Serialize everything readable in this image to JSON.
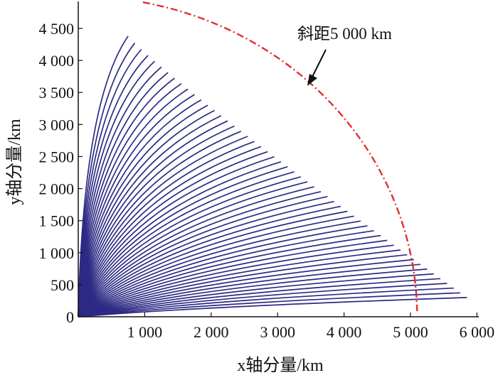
{
  "chart_data": {
    "type": "line",
    "xlabel": "x轴分量/km",
    "ylabel": "y轴分量/km",
    "xlim": [
      0,
      6000
    ],
    "ylim": [
      0,
      4900
    ],
    "x_ticks": [
      "1 000",
      "2 000",
      "3 000",
      "4 000",
      "5 000",
      "6 000"
    ],
    "y_ticks": [
      "0",
      "500",
      "1 000",
      "1 500",
      "2 000",
      "2 500",
      "3 000",
      "3 500",
      "4 000",
      "4 500"
    ],
    "x_tick_values": [
      1000,
      2000,
      3000,
      4000,
      5000,
      6000
    ],
    "y_tick_values": [
      0,
      500,
      1000,
      1500,
      2000,
      2500,
      3000,
      3500,
      4000,
      4500
    ],
    "grid": false,
    "series": [
      {
        "line_color": "#2d2a84",
        "description_values": {
          "curve_count": 52,
          "origin": [
            0,
            0
          ],
          "upper_endpoint": [
            750,
            4380
          ],
          "lower_endpoint": [
            5850,
            300
          ]
        }
      },
      {
        "line_color": "#e03030",
        "dash": "dash-dot",
        "label": "斜距5 000 km",
        "radius": 5000
      }
    ],
    "annotation": {
      "text": "斜距5 000 km",
      "arrow_to": [
        3400,
        3600
      ]
    }
  }
}
